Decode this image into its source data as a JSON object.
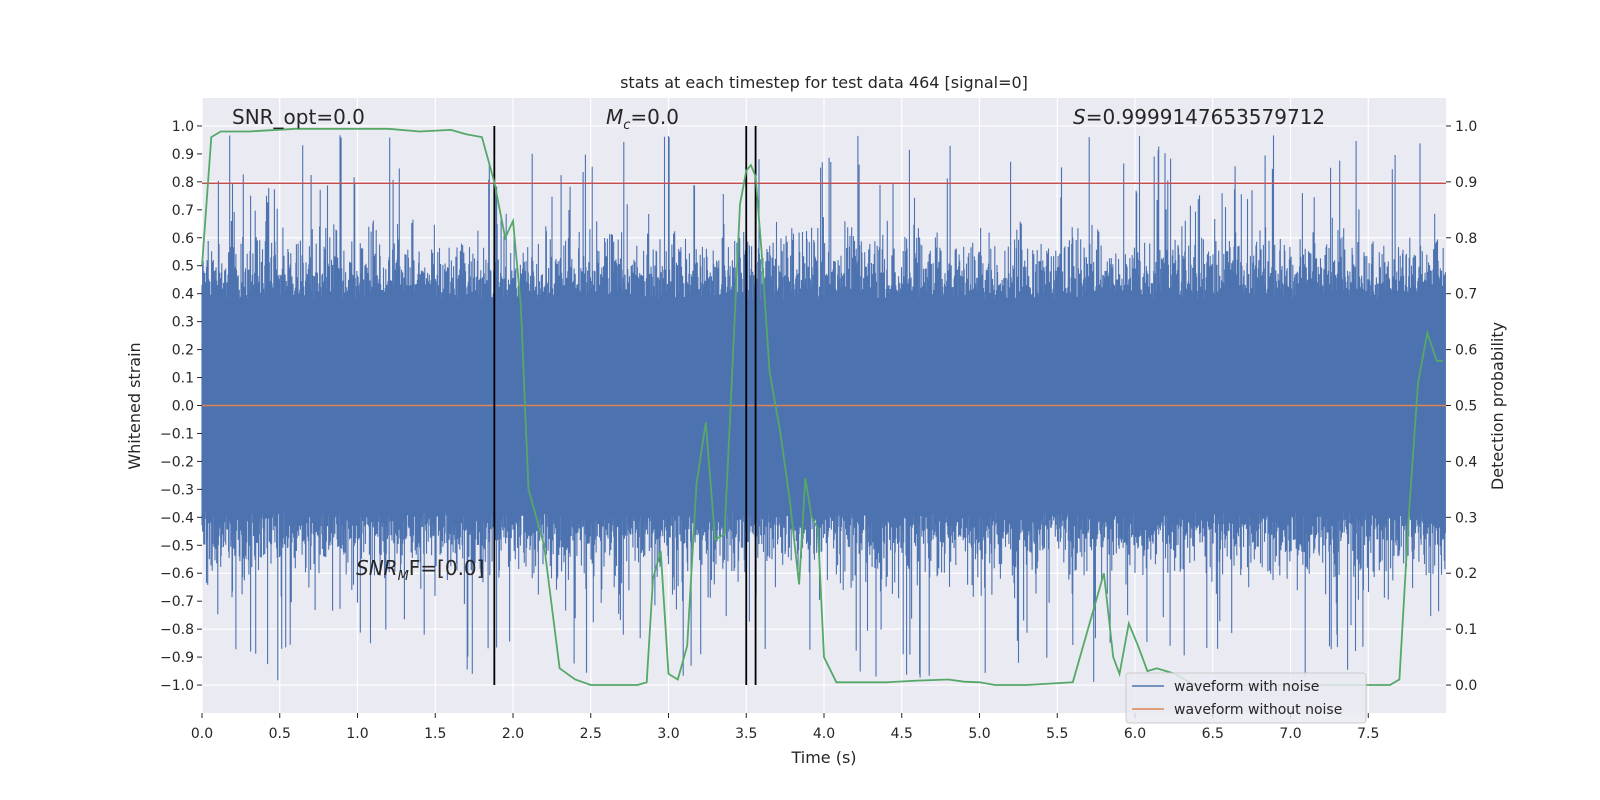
{
  "chart_data": {
    "type": "line",
    "title": "stats at each timestep for test data 464 [signal=0]",
    "xlabel": "Time (s)",
    "ylabel_left": "Whitened strain",
    "ylabel_right": "Detection probability",
    "xlim": [
      0.0,
      8.0
    ],
    "ylim_left": [
      -1.1,
      1.1
    ],
    "ylim_right": [
      -0.05,
      1.05
    ],
    "x_ticks": [
      "0.0",
      "0.5",
      "1.0",
      "1.5",
      "2.0",
      "2.5",
      "3.0",
      "3.5",
      "4.0",
      "4.5",
      "5.0",
      "5.5",
      "6.0",
      "6.5",
      "7.0",
      "7.5"
    ],
    "x_tick_values": [
      0.0,
      0.5,
      1.0,
      1.5,
      2.0,
      2.5,
      3.0,
      3.5,
      4.0,
      4.5,
      5.0,
      5.5,
      6.0,
      6.5,
      7.0,
      7.5
    ],
    "y_ticks_left": [
      "1.0",
      "0.9",
      "0.8",
      "0.7",
      "0.6",
      "0.5",
      "0.4",
      "0.3",
      "0.2",
      "0.1",
      "0.0",
      "−0.1",
      "−0.2",
      "−0.3",
      "−0.4",
      "−0.5",
      "−0.6",
      "−0.7",
      "−0.8",
      "−0.9",
      "−1.0"
    ],
    "y_tick_values_left": [
      1.0,
      0.9,
      0.8,
      0.7,
      0.6,
      0.5,
      0.4,
      0.3,
      0.2,
      0.1,
      0.0,
      -0.1,
      -0.2,
      -0.3,
      -0.4,
      -0.5,
      -0.6,
      -0.7,
      -0.8,
      -0.9,
      -1.0
    ],
    "y_ticks_right": [
      "1.0",
      "0.9",
      "0.8",
      "0.7",
      "0.6",
      "0.5",
      "0.4",
      "0.3",
      "0.2",
      "0.1",
      "0.0"
    ],
    "y_tick_values_right": [
      1.0,
      0.9,
      0.8,
      0.7,
      0.6,
      0.5,
      0.4,
      0.3,
      0.2,
      0.1,
      0.0
    ],
    "grid": true,
    "legend_position": "bottom-right",
    "series": [
      {
        "name": "waveform with noise",
        "color": "#4c72b0",
        "axis": "left",
        "style": "dense noise, amplitude about ±0.4 with spikes to ±1.0"
      },
      {
        "name": "waveform without noise",
        "color": "#dd8452",
        "axis": "left",
        "values_constant": 0.0
      }
    ],
    "detection_probability": {
      "color": "#55a868",
      "axis": "right",
      "x": [
        0.0,
        0.06,
        0.12,
        0.3,
        0.6,
        0.9,
        1.2,
        1.4,
        1.6,
        1.7,
        1.8,
        1.88,
        1.95,
        2.0,
        2.05,
        2.1,
        2.15,
        2.2,
        2.3,
        2.4,
        2.5,
        2.6,
        2.8,
        2.86,
        2.9,
        2.95,
        3.0,
        3.06,
        3.12,
        3.18,
        3.24,
        3.3,
        3.36,
        3.42,
        3.46,
        3.5,
        3.53,
        3.56,
        3.6,
        3.65,
        3.72,
        3.78,
        3.84,
        3.88,
        3.92,
        3.96,
        4.0,
        4.08,
        4.12,
        4.18,
        4.24,
        4.4,
        4.6,
        4.8,
        4.9,
        5.0,
        5.1,
        5.3,
        5.6,
        5.8,
        5.86,
        5.9,
        5.96,
        6.02,
        6.08,
        6.14,
        6.2,
        6.26,
        6.32,
        6.38,
        6.44,
        6.5,
        6.6,
        7.0,
        7.3,
        7.5,
        7.6,
        7.64,
        7.7,
        7.76,
        7.82,
        7.88,
        7.94,
        7.98
      ],
      "y": [
        0.75,
        0.98,
        0.99,
        0.99,
        0.995,
        0.995,
        0.995,
        0.99,
        0.993,
        0.985,
        0.98,
        0.9,
        0.8,
        0.83,
        0.68,
        0.35,
        0.3,
        0.25,
        0.03,
        0.01,
        0.0,
        0.0,
        0.0,
        0.005,
        0.19,
        0.24,
        0.02,
        0.01,
        0.07,
        0.36,
        0.47,
        0.26,
        0.27,
        0.62,
        0.86,
        0.92,
        0.93,
        0.91,
        0.77,
        0.56,
        0.45,
        0.33,
        0.18,
        0.37,
        0.3,
        0.28,
        0.05,
        0.005,
        0.005,
        0.005,
        0.005,
        0.005,
        0.008,
        0.01,
        0.006,
        0.005,
        0.0,
        0.0,
        0.005,
        0.2,
        0.05,
        0.02,
        0.11,
        0.07,
        0.025,
        0.03,
        0.025,
        0.02,
        0.01,
        0.0,
        0.0,
        0.005,
        0.0,
        0.0,
        0.0,
        0.0,
        0.0,
        0.0,
        0.01,
        0.3,
        0.54,
        0.63,
        0.58,
        0.58
      ]
    },
    "threshold_line": {
      "value_left": 0.795,
      "color": "#c44e52"
    },
    "vertical_lines": [
      1.88,
      3.5,
      3.56
    ],
    "vline_ymin": -1.0,
    "vline_ymax": 1.0,
    "annotations": {
      "snr_opt": "SNR_opt=0.0",
      "mc": "=0.0",
      "mc_symbol": "M",
      "mc_sub": "c",
      "s": "=0.9999147653579712",
      "s_symbol": "S",
      "snr_mf": "F=[0.0]",
      "snr_mf_symbol": "SNR",
      "snr_mf_sub": "M"
    }
  },
  "colors": {
    "plot_bg": "#eaeaf2",
    "grid": "#ffffff",
    "noise": "#4c72b0",
    "clean": "#dd8452",
    "prob": "#55a868",
    "threshold": "#c44e52",
    "vline": "#000000"
  }
}
